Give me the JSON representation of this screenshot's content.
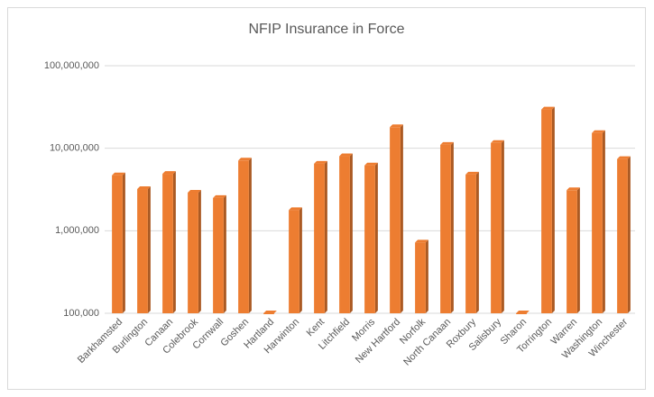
{
  "chart_data": {
    "type": "bar",
    "title": "NFIP Insurance in Force",
    "categories": [
      "Barkhamsted",
      "Burlington",
      "Canaan",
      "Colebrook",
      "Cornwall",
      "Goshen",
      "Hartland",
      "Harwinton",
      "Kent",
      "Litchfield",
      "Morris",
      "New Hartford",
      "Norfolk",
      "North Canaan",
      "Roxbury",
      "Salisbury",
      "Sharon",
      "Torrington",
      "Warren",
      "Washington",
      "Winchester"
    ],
    "values": [
      4700000,
      3200000,
      4900000,
      2900000,
      2500000,
      7100000,
      100000,
      1780000,
      6500000,
      8000000,
      6200000,
      18000000,
      720000,
      11000000,
      4800000,
      11600000,
      100000,
      29500000,
      3100000,
      15300000,
      7400000
    ],
    "color": "#ed7d31",
    "log_scale": true,
    "ylim": [
      100000,
      100000000
    ],
    "yticks": [
      {
        "value": 100000,
        "label": "100,000"
      },
      {
        "value": 1000000,
        "label": "1,000,000"
      },
      {
        "value": 10000000,
        "label": "10,000,000"
      },
      {
        "value": 100000000,
        "label": "100,000,000"
      }
    ],
    "grid": true
  }
}
